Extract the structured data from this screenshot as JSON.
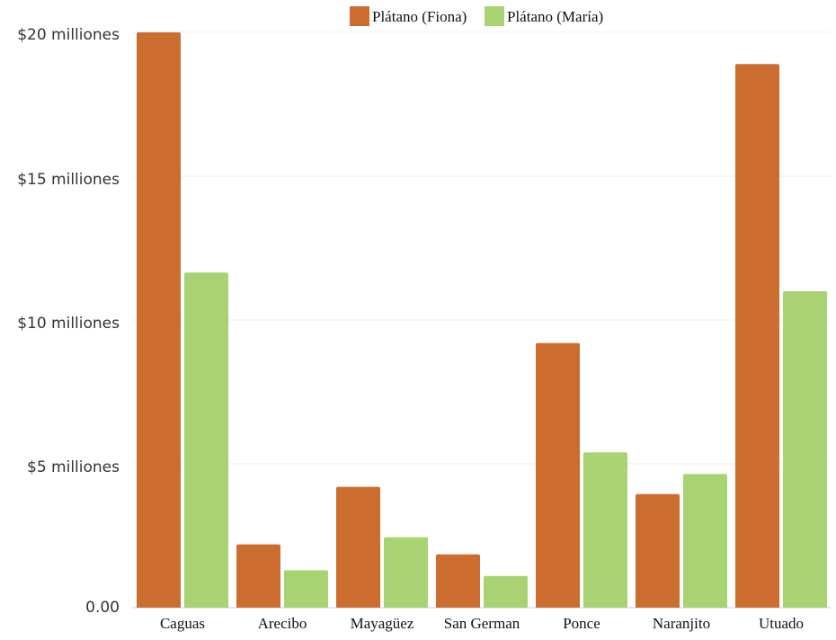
{
  "chart_data": {
    "type": "bar",
    "title": "",
    "xlabel": "",
    "ylabel": "",
    "categories": [
      "Caguas",
      "Arecibo",
      "Mayagüez",
      "San German",
      "Ponce",
      "Naranjito",
      "Utuado"
    ],
    "series": [
      {
        "name": "Plátano (Fiona)",
        "color": "#cc6d30",
        "values": [
          20.0,
          2.2,
          4.2,
          1.85,
          9.2,
          3.95,
          18.9
        ]
      },
      {
        "name": "Plátano (María)",
        "color": "#a8d373",
        "values": [
          11.65,
          1.3,
          2.45,
          1.1,
          5.4,
          4.65,
          11.0
        ]
      }
    ],
    "ylim": [
      0,
      20
    ],
    "yticks": [
      {
        "v": 0,
        "label": "0.00"
      },
      {
        "v": 5,
        "label": "$5 milliones"
      },
      {
        "v": 10,
        "label": "$10 milliones"
      },
      {
        "v": 15,
        "label": "$15 milliones"
      },
      {
        "v": 20,
        "label": "$20 milliones"
      }
    ],
    "grid": true,
    "legend": "top-center"
  }
}
